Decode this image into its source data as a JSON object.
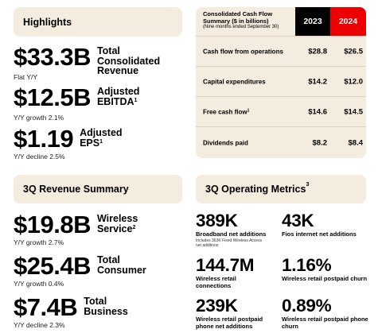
{
  "highlights": {
    "title": "Highlights",
    "items": [
      {
        "value": "$33.3B",
        "label_lines": [
          "Total",
          "Consolidated",
          "Revenue"
        ],
        "sup": "",
        "sub": "Flat Y/Y"
      },
      {
        "value": "$12.5B",
        "label_lines": [
          "Adjusted",
          "EBITDA"
        ],
        "sup": "1",
        "sub": "Y/Y growth 2.1%"
      },
      {
        "value": "$1.19",
        "label_lines": [
          "Adjusted",
          "EPS"
        ],
        "sup": "1",
        "sub": "Y/Y decline 2.5%"
      }
    ]
  },
  "cash_flow": {
    "title": "Consolidated Cash Flow Summary ($ in billions)",
    "note": "(Nine months ended September 30)",
    "col_2023": "2023",
    "col_2024": "2024",
    "col_2023_color": "#000000",
    "col_2024_color": "#ee0000",
    "rows": [
      {
        "label": "Cash flow from operations",
        "sup": "",
        "v2023": "$28.8",
        "v2024": "$26.5"
      },
      {
        "label": "Capital expenditures",
        "sup": "",
        "v2023": "$14.2",
        "v2024": "$12.0"
      },
      {
        "label": "Free cash flow",
        "sup": "1",
        "v2023": "$14.6",
        "v2024": "$14.5"
      },
      {
        "label": "Dividends paid",
        "sup": "",
        "v2023": "$8.2",
        "v2024": "$8.4"
      }
    ]
  },
  "revenue_summary": {
    "title": "3Q Revenue Summary",
    "items": [
      {
        "value": "$19.8B",
        "label_lines": [
          "Wireless",
          "Service"
        ],
        "sup": "2",
        "sub": "Y/Y growth 2.7%"
      },
      {
        "value": "$25.4B",
        "label_lines": [
          "Total",
          "Consumer"
        ],
        "sup": "",
        "sub": "Y/Y growth 0.4%"
      },
      {
        "value": "$7.4B",
        "label_lines": [
          "Total",
          "Business"
        ],
        "sup": "",
        "sub": "Y/Y decline 2.3%"
      }
    ]
  },
  "operating_metrics": {
    "title": "3Q Operating Metrics",
    "title_sup": "3",
    "items": [
      {
        "value": "389K",
        "label": "Broadband net additions",
        "note_lines": [
          "Includes 363K Fixed Wireless Access",
          "net additions"
        ]
      },
      {
        "value": "43K",
        "label": "Fios internet net additions",
        "note_lines": []
      },
      {
        "value": "144.7M",
        "label": "Wireless retail connections",
        "note_lines": []
      },
      {
        "value": "1.16%",
        "label": "Wireless retail postpaid churn",
        "note_lines": []
      },
      {
        "value": "239K",
        "label": "Wireless retail postpaid phone net additions",
        "note_lines": []
      },
      {
        "value": "0.89%",
        "label": "Wireless retail postpaid phone churn",
        "note_lines": []
      }
    ]
  },
  "colors": {
    "panel_bg": "#f3ecdf",
    "accent_red": "#ee0000"
  }
}
